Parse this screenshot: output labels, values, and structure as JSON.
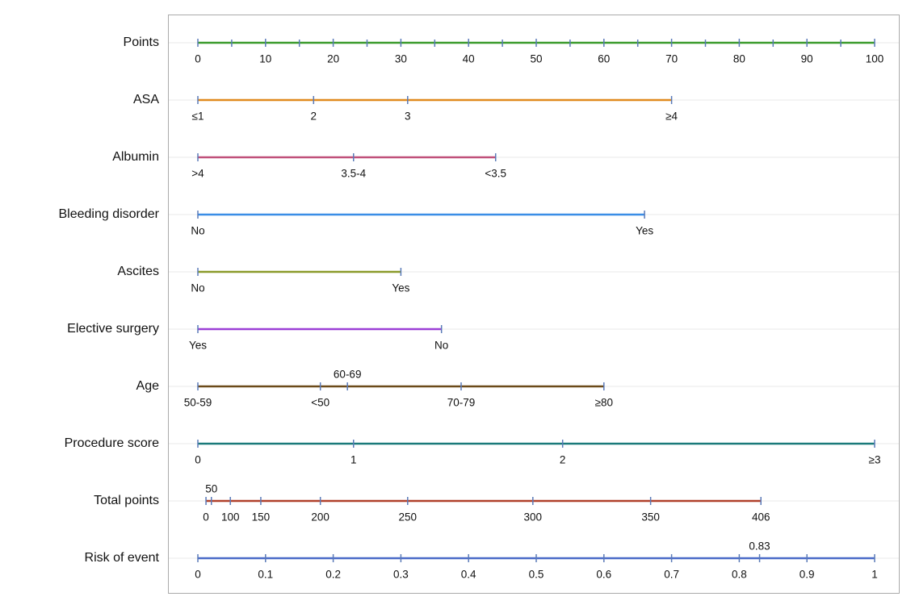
{
  "chart_data": {
    "type": "nomogram",
    "rows": [
      {
        "label": "Points",
        "color": "#3a9a2a",
        "xlim": [
          0,
          100
        ],
        "ticks": [
          0,
          10,
          20,
          30,
          40,
          50,
          60,
          70,
          80,
          90,
          100
        ],
        "minor_ticks": [
          5,
          15,
          25,
          35,
          45,
          55,
          65,
          75,
          85,
          95
        ]
      },
      {
        "label": "ASA",
        "color": "#e08a1e",
        "levels": [
          {
            "label": "≤1",
            "points": 0
          },
          {
            "label": "2",
            "points": 17.1
          },
          {
            "label": "3",
            "points": 31
          },
          {
            "label": "≥4",
            "points": 70
          }
        ]
      },
      {
        "label": "Albumin",
        "color": "#c0507a",
        "levels": [
          {
            "label": ">4",
            "points": 0
          },
          {
            "label": "3.5-4",
            "points": 23
          },
          {
            "label": "<3.5",
            "points": 44
          }
        ]
      },
      {
        "label": "Bleeding disorder",
        "color": "#3a8ee6",
        "levels": [
          {
            "label": "No",
            "points": 0
          },
          {
            "label": "Yes",
            "points": 66
          }
        ]
      },
      {
        "label": "Ascites",
        "color": "#8a9a2a",
        "levels": [
          {
            "label": "No",
            "points": 0
          },
          {
            "label": "Yes",
            "points": 30
          }
        ]
      },
      {
        "label": "Elective surgery",
        "color": "#9b3fd6",
        "levels": [
          {
            "label": "Yes",
            "points": 0
          },
          {
            "label": "No",
            "points": 36
          }
        ]
      },
      {
        "label": "Age",
        "color": "#6b4a1a",
        "levels": [
          {
            "label": "50-59",
            "points": 0
          },
          {
            "label": "<50",
            "points": 18.1
          },
          {
            "label": "60-69",
            "points": 22.1,
            "position": "above"
          },
          {
            "label": "70-79",
            "points": 38.9
          },
          {
            "label": "≥80",
            "points": 60
          }
        ]
      },
      {
        "label": "Procedure score",
        "color": "#1a7a7a",
        "levels": [
          {
            "label": "0",
            "points": 0
          },
          {
            "label": "1",
            "points": 23
          },
          {
            "label": "2",
            "points": 53.9
          },
          {
            "label": "≥3",
            "points": 100
          }
        ]
      },
      {
        "label": "Total points",
        "color": "#b0402a",
        "levels": [
          {
            "label": "0",
            "points": 1.2
          },
          {
            "label": "50",
            "points": 2,
            "position": "above"
          },
          {
            "label": "100",
            "points": 4.8
          },
          {
            "label": "150",
            "points": 9.3
          },
          {
            "label": "200",
            "points": 18.1
          },
          {
            "label": "250",
            "points": 31
          },
          {
            "label": "300",
            "points": 49.5
          },
          {
            "label": "350",
            "points": 66.9
          },
          {
            "label": "406",
            "points": 83.2
          }
        ]
      },
      {
        "label": "Risk of event",
        "color": "#4a6ac8",
        "xlim": [
          0,
          1
        ],
        "ticks": [
          0,
          0.1,
          0.2,
          0.3,
          0.4,
          0.5,
          0.6,
          0.7,
          0.8,
          0.9,
          1
        ],
        "marked_value": 0.83
      }
    ],
    "tick_color": "#5a7ab8"
  }
}
